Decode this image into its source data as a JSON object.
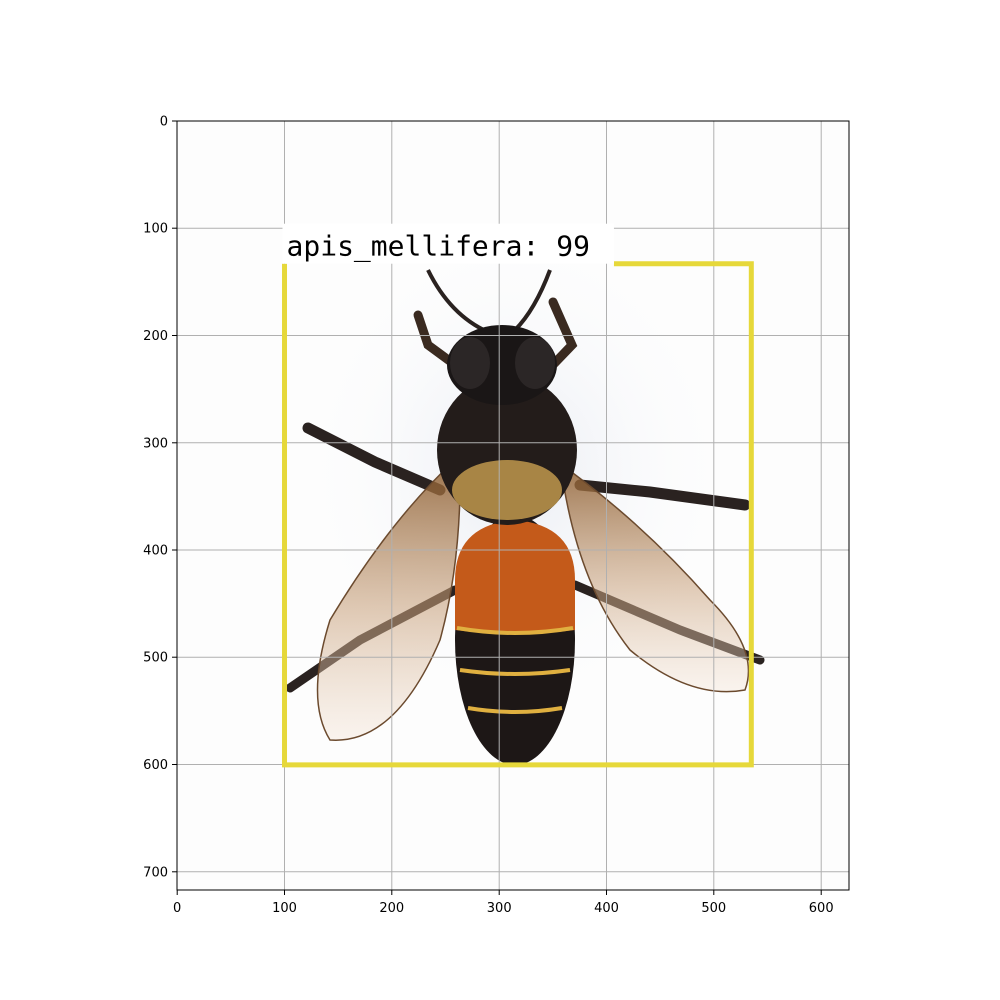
{
  "image": {
    "subject_icon": "honeybee-icon",
    "background_color": "#fdfdfd"
  },
  "axes": {
    "x_range": [
      0,
      626
    ],
    "y_range": [
      718,
      0
    ],
    "x_ticks": [
      "0",
      "100",
      "200",
      "300",
      "400",
      "500",
      "600"
    ],
    "y_ticks": [
      "0",
      "100",
      "200",
      "300",
      "400",
      "500",
      "600",
      "700"
    ],
    "grid": true,
    "grid_color": "#b0b0b0"
  },
  "detection": {
    "label": "apis_mellifera: 99",
    "class_name": "apis_mellifera",
    "confidence": 99,
    "box_color": "#e6d83a",
    "box": {
      "x_min": 100,
      "y_min": 133,
      "x_max": 535,
      "y_max": 600
    }
  }
}
